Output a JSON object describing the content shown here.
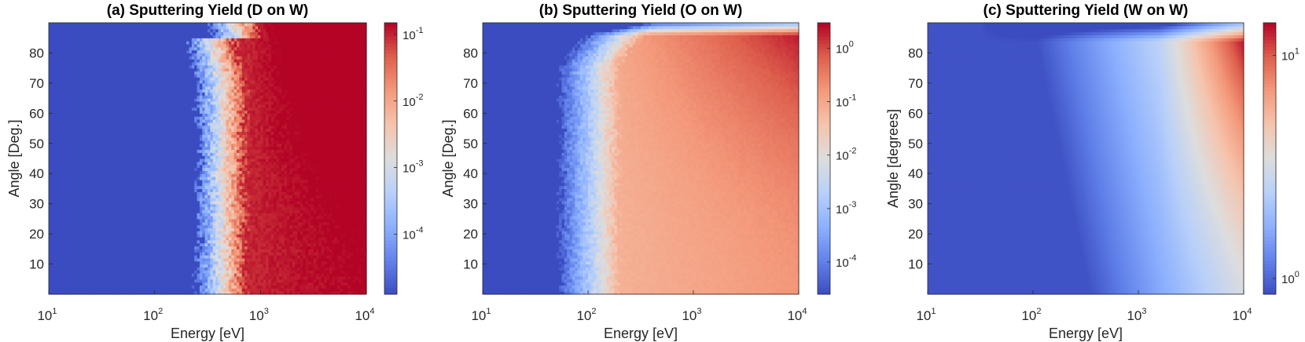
{
  "chart_data": [
    {
      "type": "heatmap",
      "title": "(a) Sputtering Yield (D on W)",
      "xlabel": "Energy [eV]",
      "ylabel": "Angle [Deg.]",
      "xscale": "log",
      "xlim": [
        10,
        10000
      ],
      "ylim": [
        0,
        90
      ],
      "xticks": [
        {
          "base": "10",
          "exp": "1"
        },
        {
          "base": "10",
          "exp": "2"
        },
        {
          "base": "10",
          "exp": "3"
        },
        {
          "base": "10",
          "exp": "4"
        }
      ],
      "yticks": [
        "10",
        "20",
        "30",
        "40",
        "50",
        "60",
        "70",
        "80"
      ],
      "colorbar": {
        "scale": "log",
        "range": [
          1.25e-05,
          0.15
        ],
        "colormap": "coolwarm",
        "ticks": [
          {
            "base": "10",
            "exp": "-4"
          },
          {
            "base": "10",
            "exp": "-3"
          },
          {
            "base": "10",
            "exp": "-2"
          },
          {
            "base": "10",
            "exp": "-1"
          }
        ]
      },
      "field": {
        "threshold_eV": 260,
        "yield_at_10keV_90deg": 0.1,
        "noisy": true
      }
    },
    {
      "type": "heatmap",
      "title": "(b) Sputtering Yield (O on W)",
      "xlabel": "Energy [eV]",
      "ylabel": "Angle [Deg.]",
      "xscale": "log",
      "xlim": [
        10,
        10000
      ],
      "ylim": [
        0,
        90
      ],
      "xticks": [
        {
          "base": "10",
          "exp": "1"
        },
        {
          "base": "10",
          "exp": "2"
        },
        {
          "base": "10",
          "exp": "3"
        },
        {
          "base": "10",
          "exp": "4"
        }
      ],
      "yticks": [
        "10",
        "20",
        "30",
        "40",
        "50",
        "60",
        "70",
        "80"
      ],
      "colorbar": {
        "scale": "log",
        "range": [
          2.5e-05,
          3
        ],
        "colormap": "coolwarm",
        "ticks": [
          {
            "base": "10",
            "exp": "-4"
          },
          {
            "base": "10",
            "exp": "-3"
          },
          {
            "base": "10",
            "exp": "-2"
          },
          {
            "base": "10",
            "exp": "-1"
          },
          {
            "base": "10",
            "exp": "0"
          }
        ]
      },
      "field": {
        "threshold_eV": 55,
        "yield_at_10keV_90deg": 3,
        "noisy": true
      }
    },
    {
      "type": "heatmap",
      "title": "(c) Sputtering Yield (W on W)",
      "xlabel": "Energy [eV]",
      "ylabel": "Angle [degrees]",
      "xscale": "log",
      "xlim": [
        10,
        10000
      ],
      "ylim": [
        0,
        90
      ],
      "xticks": [
        {
          "base": "10",
          "exp": "1"
        },
        {
          "base": "10",
          "exp": "2"
        },
        {
          "base": "10",
          "exp": "3"
        },
        {
          "base": "10",
          "exp": "4"
        }
      ],
      "yticks": [
        "10",
        "20",
        "30",
        "40",
        "50",
        "60",
        "70",
        "80"
      ],
      "colorbar": {
        "scale": "log",
        "range": [
          0.85,
          14
        ],
        "colormap": "coolwarm",
        "ticks": [
          {
            "base": "10",
            "exp": "0"
          },
          {
            "base": "10",
            "exp": "1"
          }
        ]
      },
      "field": {
        "threshold_eV": 0,
        "yield_at_10keV_90deg": 14,
        "noisy": false
      }
    }
  ]
}
